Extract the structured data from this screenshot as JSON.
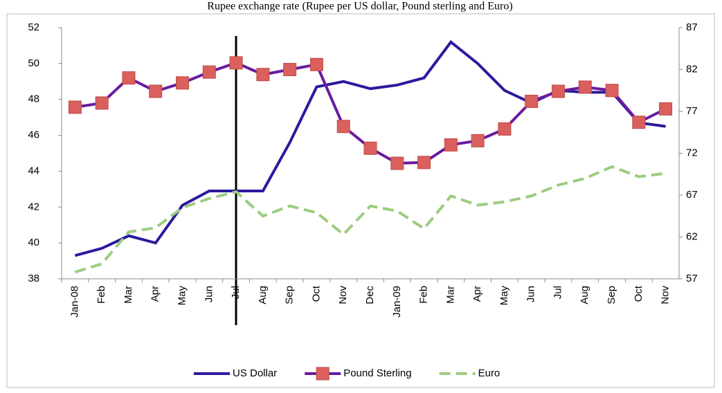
{
  "chart_data": {
    "type": "line",
    "title": "Rupee exchange rate (Rupee per US dollar, Pound sterling and Euro)",
    "categories": [
      "Jan-08",
      "Feb",
      "Mar",
      "Apr",
      "May",
      "Jun",
      "Jul",
      "Aug",
      "Sep",
      "Oct",
      "Nov",
      "Dec",
      "Jan-09",
      "Feb",
      "Mar",
      "Apr",
      "May",
      "Jun",
      "Jul",
      "Aug",
      "Sep",
      "Oct",
      "Nov"
    ],
    "ylim": [
      38,
      52
    ],
    "yticks": [
      38,
      40,
      42,
      44,
      46,
      48,
      50,
      52
    ],
    "y2lim": [
      57,
      87
    ],
    "y2ticks": [
      57,
      62,
      67,
      72,
      77,
      82,
      87
    ],
    "series": [
      {
        "name": "US Dollar",
        "color": "#2b1a9e",
        "values": [
          39.3,
          39.7,
          40.4,
          40.0,
          42.1,
          42.9,
          42.9,
          42.9,
          45.6,
          48.7,
          49.0,
          48.6,
          48.8,
          49.2,
          51.2,
          50.0,
          48.5,
          47.8,
          48.5,
          48.4,
          48.4,
          46.7,
          46.5
        ]
      },
      {
        "name": "Pound Sterling",
        "color": "#6a1aa0",
        "marker_color": "#d9605c",
        "axis": "y2",
        "values": [
          77.5,
          78.0,
          81.0,
          79.4,
          80.4,
          81.7,
          82.8,
          81.4,
          82.0,
          82.6,
          75.2,
          72.6,
          70.8,
          70.9,
          73.0,
          73.5,
          74.9,
          78.2,
          79.4,
          79.9,
          79.5,
          75.7,
          77.3
        ]
      },
      {
        "name": "Euro",
        "color": "#9ccc80",
        "axis": "y2",
        "dashed": true,
        "values": [
          57.8,
          58.8,
          62.6,
          63.1,
          65.5,
          66.6,
          67.4,
          64.5,
          65.7,
          64.9,
          62.3,
          65.7,
          65.1,
          63.0,
          66.9,
          65.8,
          66.2,
          66.9,
          68.2,
          69.0,
          70.4,
          69.2,
          69.6
        ]
      }
    ]
  }
}
